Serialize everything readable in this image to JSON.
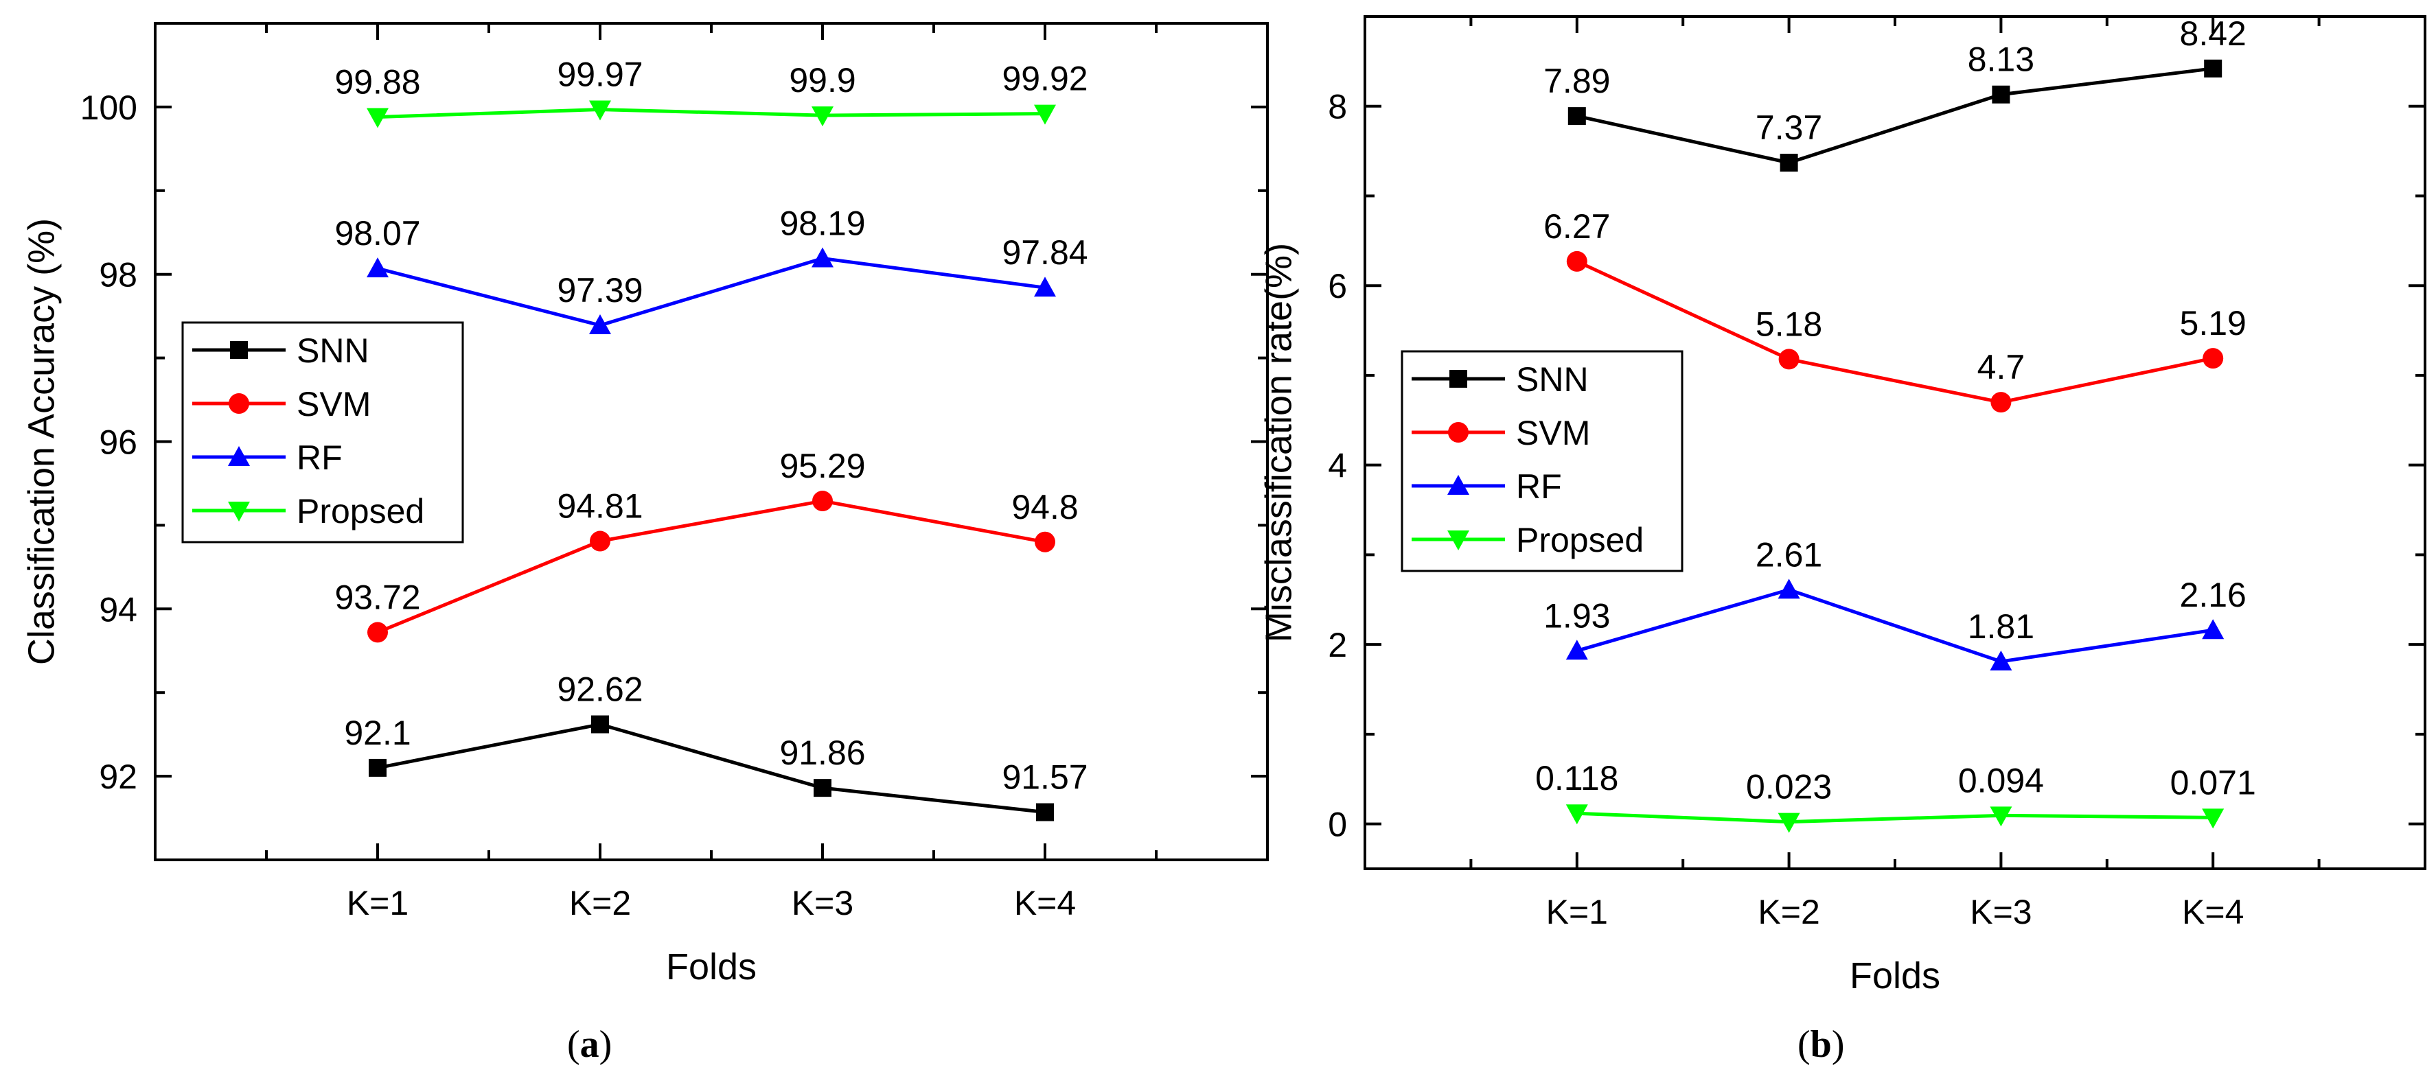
{
  "chart_data": [
    {
      "type": "line",
      "panel_label": "a",
      "xlabel": "Folds",
      "ylabel": "Classification Accuracy (%)",
      "categories": [
        "K=1",
        "K=2",
        "K=3",
        "K=4"
      ],
      "ylim": [
        91.0,
        101.0
      ],
      "yticks": [
        92,
        94,
        96,
        98,
        100
      ],
      "grid": false,
      "legend_position": "middle-left",
      "series": [
        {
          "name": "SNN",
          "color": "#000000",
          "marker": "square",
          "values": [
            92.1,
            92.62,
            91.86,
            91.57
          ],
          "labels": [
            "92.1",
            "92.62",
            "91.86",
            "91.57"
          ]
        },
        {
          "name": "SVM",
          "color": "#ff0000",
          "marker": "circle",
          "values": [
            93.72,
            94.81,
            95.29,
            94.8
          ],
          "labels": [
            "93.72",
            "94.81",
            "95.29",
            "94.8"
          ]
        },
        {
          "name": "RF",
          "color": "#0000ff",
          "marker": "triangle-up",
          "values": [
            98.07,
            97.39,
            98.19,
            97.84
          ],
          "labels": [
            "98.07",
            "97.39",
            "98.19",
            "97.84"
          ]
        },
        {
          "name": "Propsed",
          "color": "#00ff00",
          "marker": "triangle-down",
          "values": [
            99.88,
            99.97,
            99.9,
            99.92
          ],
          "labels": [
            "99.88",
            "99.97",
            "99.9",
            "99.92"
          ]
        }
      ]
    },
    {
      "type": "line",
      "panel_label": "b",
      "xlabel": "Folds",
      "ylabel": "Misclassification rate(%)",
      "categories": [
        "K=1",
        "K=2",
        "K=3",
        "K=4"
      ],
      "ylim": [
        -0.5,
        9.0
      ],
      "yticks": [
        0,
        2,
        4,
        6,
        8
      ],
      "grid": false,
      "legend_position": "middle-left",
      "series": [
        {
          "name": "SNN",
          "color": "#000000",
          "marker": "square",
          "values": [
            7.89,
            7.37,
            8.13,
            8.42
          ],
          "labels": [
            "7.89",
            "7.37",
            "8.13",
            "8.42"
          ]
        },
        {
          "name": "SVM",
          "color": "#ff0000",
          "marker": "circle",
          "values": [
            6.27,
            5.18,
            4.7,
            5.19
          ],
          "labels": [
            "6.27",
            "5.18",
            "4.7",
            "5.19"
          ]
        },
        {
          "name": "RF",
          "color": "#0000ff",
          "marker": "triangle-up",
          "values": [
            1.93,
            2.61,
            1.81,
            2.16
          ],
          "labels": [
            "1.93",
            "2.61",
            "1.81",
            "2.16"
          ]
        },
        {
          "name": "Propsed",
          "color": "#00ff00",
          "marker": "triangle-down",
          "values": [
            0.118,
            0.023,
            0.094,
            0.071
          ],
          "labels": [
            "0.118",
            "0.023",
            "0.094",
            "0.071"
          ]
        }
      ]
    }
  ],
  "captions": {
    "a": "a",
    "b": "b"
  }
}
